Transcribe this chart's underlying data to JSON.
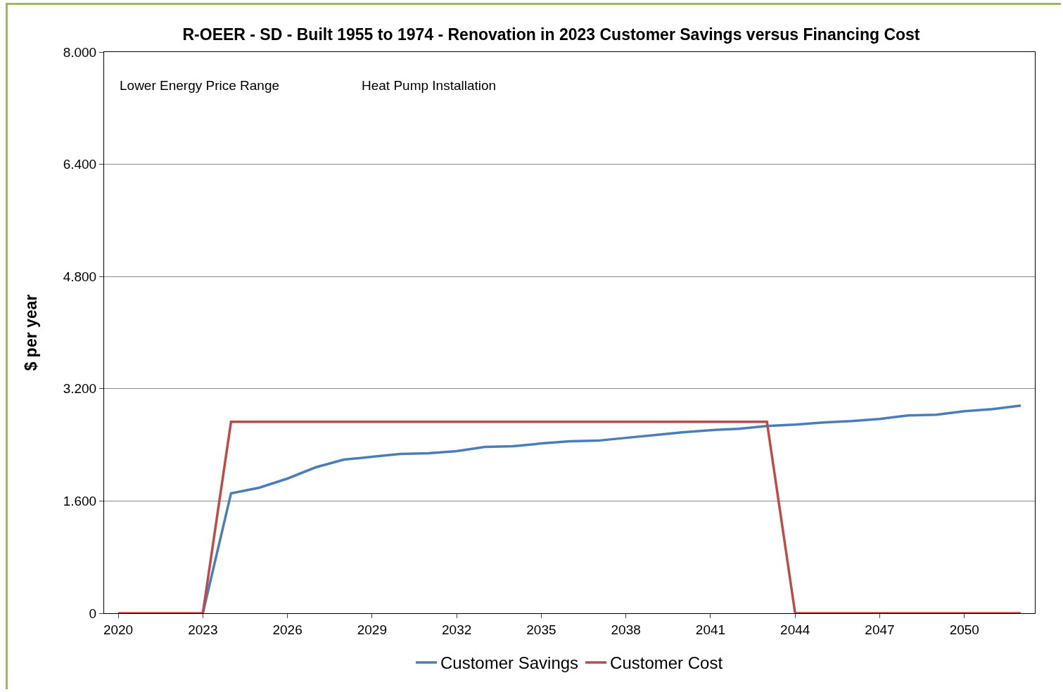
{
  "chart_data": {
    "type": "line",
    "title": "R-OEER - SD - Built 1955 to 1974 - Renovation in 2023 Customer Savings versus Financing Cost",
    "ylabel": "$ per year",
    "annotations": [
      "Lower Energy Price Range",
      "Heat Pump Installation"
    ],
    "x": [
      2020,
      2021,
      2022,
      2023,
      2024,
      2025,
      2026,
      2027,
      2028,
      2029,
      2030,
      2031,
      2032,
      2033,
      2034,
      2035,
      2036,
      2037,
      2038,
      2039,
      2040,
      2041,
      2042,
      2043,
      2044,
      2045,
      2046,
      2047,
      2048,
      2049,
      2050,
      2051,
      2052
    ],
    "series": [
      {
        "name": "Customer Savings",
        "color": "#4a7ebb",
        "values": [
          null,
          null,
          null,
          0,
          1.71,
          1.79,
          1.92,
          2.08,
          2.19,
          2.23,
          2.27,
          2.28,
          2.31,
          2.37,
          2.38,
          2.42,
          2.45,
          2.46,
          2.5,
          2.54,
          2.58,
          2.61,
          2.63,
          2.67,
          2.69,
          2.72,
          2.74,
          2.77,
          2.82,
          2.83,
          2.88,
          2.91,
          2.96
        ]
      },
      {
        "name": "Customer Cost",
        "color": "#be4b48",
        "values": [
          0,
          0,
          0,
          0,
          2.73,
          2.73,
          2.73,
          2.73,
          2.73,
          2.73,
          2.73,
          2.73,
          2.73,
          2.73,
          2.73,
          2.73,
          2.73,
          2.73,
          2.73,
          2.73,
          2.73,
          2.73,
          2.73,
          2.73,
          0,
          0,
          0,
          0,
          0,
          0,
          0,
          0,
          0
        ]
      }
    ],
    "xlim": [
      2019.5,
      2052.5
    ],
    "xticks": [
      2020,
      2023,
      2026,
      2029,
      2032,
      2035,
      2038,
      2041,
      2044,
      2047,
      2050
    ],
    "ylim": [
      0,
      8
    ],
    "yticks": [
      0,
      {
        "value": 1.6,
        "label": "1.600"
      },
      {
        "value": 3.2,
        "label": "3.200"
      },
      {
        "value": 4.8,
        "label": "4.800"
      },
      {
        "value": 6.4,
        "label": "6.400"
      },
      {
        "value": 8,
        "label": "8.000"
      }
    ],
    "grid": "y",
    "legend": "bottom",
    "marker": "none",
    "line_style": "solid"
  }
}
